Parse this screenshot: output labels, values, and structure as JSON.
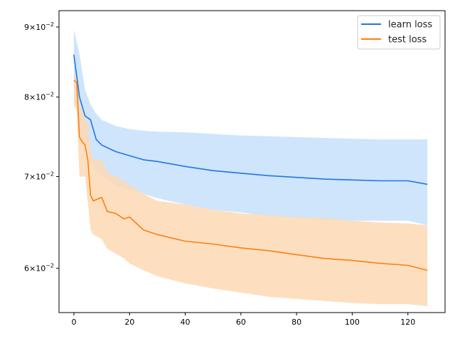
{
  "chart_data": {
    "type": "line",
    "title": "",
    "xlabel": "",
    "ylabel": "",
    "xlim": [
      -5.35,
      133.35
    ],
    "ylim": [
      0.0557,
      0.0925
    ],
    "y_scale": "log",
    "grid": false,
    "legend_placement": "top-right",
    "x_ticks": [
      {
        "value": 0,
        "label": "0"
      },
      {
        "value": 20,
        "label": "20"
      },
      {
        "value": 40,
        "label": "40"
      },
      {
        "value": 60,
        "label": "60"
      },
      {
        "value": 80,
        "label": "80"
      },
      {
        "value": 100,
        "label": "100"
      },
      {
        "value": 120,
        "label": "120"
      }
    ],
    "y_ticks": [
      {
        "value": 0.06,
        "mant": "6",
        "times": "×10",
        "exp": "−2"
      },
      {
        "value": 0.07,
        "mant": "7",
        "times": "×10",
        "exp": "−2"
      },
      {
        "value": 0.08,
        "mant": "8",
        "times": "×10",
        "exp": "−2"
      },
      {
        "value": 0.09,
        "mant": "9",
        "times": "×10",
        "exp": "−2"
      }
    ],
    "series": [
      {
        "name": "learn loss",
        "color": "#1f77e4",
        "band_color": "#c6e0fb",
        "x": [
          0,
          2,
          4,
          6,
          8,
          10,
          15,
          20,
          25,
          30,
          40,
          50,
          60,
          70,
          80,
          90,
          100,
          110,
          120,
          127
        ],
        "mean": [
          0.0859,
          0.08,
          0.0775,
          0.077,
          0.0745,
          0.0738,
          0.073,
          0.0725,
          0.072,
          0.0718,
          0.0712,
          0.0707,
          0.0704,
          0.0701,
          0.0699,
          0.0697,
          0.0696,
          0.0695,
          0.0695,
          0.0691
        ],
        "upper": [
          0.0896,
          0.086,
          0.081,
          0.079,
          0.0778,
          0.077,
          0.0762,
          0.0758,
          0.0756,
          0.0755,
          0.0754,
          0.0752,
          0.075,
          0.0749,
          0.0748,
          0.0747,
          0.0746,
          0.0745,
          0.0745,
          0.0745
        ],
        "lower": [
          0.0812,
          0.076,
          0.0735,
          0.072,
          0.0705,
          0.07,
          0.069,
          0.0685,
          0.068,
          0.0675,
          0.0668,
          0.0662,
          0.0659,
          0.0655,
          0.0653,
          0.0651,
          0.065,
          0.065,
          0.065,
          0.0645
        ]
      },
      {
        "name": "test loss",
        "color": "#ff7f0e",
        "band_color": "#fdd9b5",
        "x": [
          0,
          1,
          2,
          3,
          4,
          5,
          6,
          7,
          10,
          12,
          15,
          18,
          20,
          25,
          30,
          40,
          50,
          60,
          70,
          80,
          90,
          100,
          110,
          120,
          127
        ],
        "mean": [
          0.0823,
          0.082,
          0.0748,
          0.0742,
          0.0738,
          0.072,
          0.0678,
          0.0672,
          0.0676,
          0.066,
          0.0658,
          0.0652,
          0.0654,
          0.064,
          0.0635,
          0.0628,
          0.0625,
          0.0621,
          0.0618,
          0.0614,
          0.061,
          0.0608,
          0.0605,
          0.0603,
          0.0598
        ],
        "upper": [
          0.083,
          0.083,
          0.079,
          0.078,
          0.077,
          0.077,
          0.073,
          0.072,
          0.072,
          0.0705,
          0.07,
          0.0695,
          0.069,
          0.068,
          0.0672,
          0.0668,
          0.0662,
          0.0658,
          0.0656,
          0.0654,
          0.0653,
          0.065,
          0.0648,
          0.0647,
          0.0645
        ],
        "lower": [
          0.079,
          0.078,
          0.07,
          0.07,
          0.07,
          0.067,
          0.064,
          0.0635,
          0.063,
          0.062,
          0.0615,
          0.061,
          0.0605,
          0.0598,
          0.0592,
          0.0585,
          0.058,
          0.0576,
          0.0572,
          0.057,
          0.0568,
          0.0566,
          0.0565,
          0.0565,
          0.0563
        ]
      }
    ]
  }
}
